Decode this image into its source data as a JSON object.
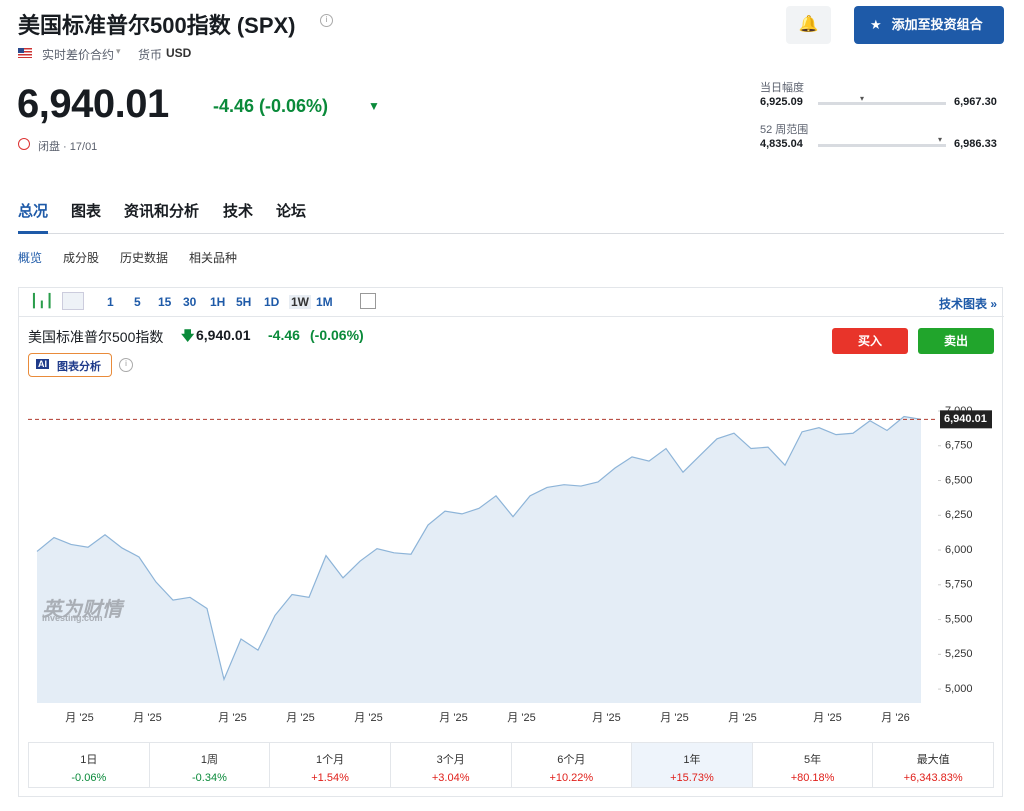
{
  "header": {
    "title": "美国标准普尔500指数 (SPX)",
    "contract": "实时差价合约",
    "currency_label": "货币",
    "currency": "USD",
    "add_button": "添加至投资组合"
  },
  "quote": {
    "price": "6,940.01",
    "change": "-4.46 (-0.06%)",
    "status": "闭盘 · 17/01",
    "day_range": {
      "label": "当日幅度",
      "low": "6,925.09",
      "high": "6,967.30"
    },
    "week52_range": {
      "label": "52 周范围",
      "low": "4,835.04",
      "high": "6,986.33"
    }
  },
  "tabs": [
    "总况",
    "图表",
    "资讯和分析",
    "技术",
    "论坛"
  ],
  "subtabs": [
    "概览",
    "成分股",
    "历史数据",
    "相关品种"
  ],
  "toolbar": {
    "intervals": [
      "1",
      "5",
      "15",
      "30",
      "1H",
      "5H",
      "1D",
      "1W",
      "1M"
    ],
    "advanced": "技术图表 »"
  },
  "chart_header": {
    "name": "美国标准普尔500指数",
    "price": "6,940.01",
    "change": "-4.46",
    "change_pct": "(-0.06%)",
    "buy": "买入",
    "sell": "卖出",
    "analysis": "图表分析",
    "watermark": "英为财情",
    "watermark_sub": "Investing.com"
  },
  "chart_data": {
    "type": "area",
    "color": "#8db4d8",
    "fill": "#e4edf6",
    "categories": [
      null,
      null,
      null,
      "月 '25",
      null,
      null,
      null,
      "月 '25",
      null,
      null,
      null,
      null,
      "月 '25",
      null,
      null,
      null,
      "月 '25",
      null,
      null,
      null,
      "月 '25",
      null,
      null,
      null,
      null,
      "月 '25",
      null,
      null,
      null,
      "月 '25",
      null,
      null,
      null,
      null,
      "月 '25",
      null,
      null,
      null,
      "月 '25",
      null,
      null,
      null,
      "月 '25",
      null,
      null,
      null,
      null,
      "月 '25",
      null,
      null,
      null,
      "月 '26",
      null
    ],
    "values": [
      5990,
      6090,
      6040,
      6020,
      6110,
      6015,
      5950,
      5770,
      5640,
      5660,
      5580,
      5070,
      5360,
      5280,
      5530,
      5680,
      5660,
      5960,
      5800,
      5920,
      6010,
      5980,
      5970,
      6180,
      6280,
      6260,
      6300,
      6390,
      6240,
      6390,
      6450,
      6470,
      6460,
      6490,
      6590,
      6670,
      6640,
      6730,
      6560,
      6680,
      6800,
      6840,
      6730,
      6740,
      6610,
      6850,
      6880,
      6830,
      6840,
      6930,
      6860,
      6960,
      6940.01
    ],
    "ylim": [
      4900,
      7115
    ],
    "yticks": [
      {
        "value": 5000,
        "label": "5,000"
      },
      {
        "value": 5250,
        "label": "5,250"
      },
      {
        "value": 5500,
        "label": "5,500"
      },
      {
        "value": 5750,
        "label": "5,750"
      },
      {
        "value": 6000,
        "label": "6,000"
      },
      {
        "value": 6250,
        "label": "6,250"
      },
      {
        "value": 6500,
        "label": "6,500"
      },
      {
        "value": 6750,
        "label": "6,750"
      },
      {
        "value": 7000,
        "label": "7,000"
      }
    ]
  },
  "performance": [
    {
      "period": "1日",
      "change": "-0.06%"
    },
    {
      "period": "1周",
      "change": "-0.34%"
    },
    {
      "period": "1个月",
      "change": "+1.54%"
    },
    {
      "period": "3个月",
      "change": "+3.04%"
    },
    {
      "period": "6个月",
      "change": "+10.22%"
    },
    {
      "period": "1年",
      "change": "+15.73%"
    },
    {
      "period": "5年",
      "change": "+80.18%"
    },
    {
      "period": "最大值",
      "change": "+6,343.83%"
    }
  ]
}
